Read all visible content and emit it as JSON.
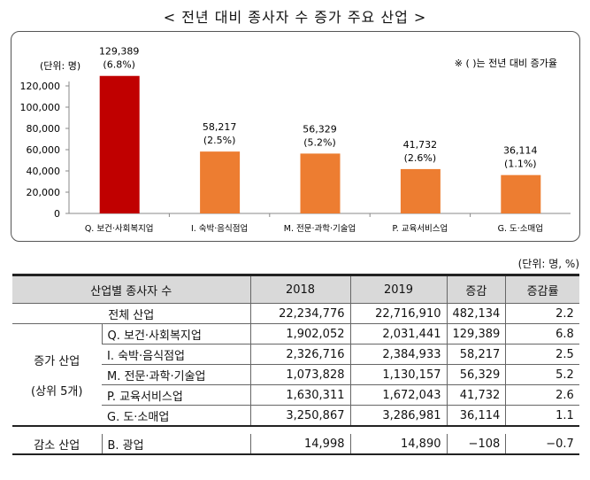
{
  "title": "< 전년 대비 종사자 수 증가 주요 산업 >",
  "chart_data": {
    "type": "bar",
    "unit_label": "(단위: 명)",
    "note": "※ (  )는 전년 대비 증가율",
    "categories": [
      "Q. 보건·사회복지업",
      "I. 숙박·음식점업",
      "M. 전문·과학·기술업",
      "P. 교육서비스업",
      "G. 도·소매업"
    ],
    "values": [
      129389,
      58217,
      56329,
      41732,
      36114
    ],
    "value_labels": [
      "129,389",
      "58,217",
      "56,329",
      "41,732",
      "36,114"
    ],
    "rate_labels": [
      "(6.8%)",
      "(2.5%)",
      "(5.2%)",
      "(2.6%)",
      "(1.1%)"
    ],
    "colors": [
      "#c00000",
      "#ed7d31",
      "#ed7d31",
      "#ed7d31",
      "#ed7d31"
    ],
    "ylim": [
      0,
      120000
    ],
    "yticks": [
      "0",
      "20,000",
      "40,000",
      "60,000",
      "80,000",
      "100,000",
      "120,000"
    ],
    "grid": false
  },
  "table": {
    "unit": "(단위: 명, %)",
    "headers": [
      "산업별 종사자 수",
      "2018",
      "2019",
      "증감",
      "증감률"
    ],
    "total": {
      "label": "전체 산업",
      "y2018": "22,234,776",
      "y2019": "22,716,910",
      "diff": "482,134",
      "rate": "2.2"
    },
    "increase_group": "증가 산업",
    "increase_sub": "(상위 5개)",
    "rows": [
      {
        "label": "Q. 보건·사회복지업",
        "y2018": "1,902,052",
        "y2019": "2,031,441",
        "diff": "129,389",
        "rate": "6.8"
      },
      {
        "label": "I. 숙박·음식점업",
        "y2018": "2,326,716",
        "y2019": "2,384,933",
        "diff": "58,217",
        "rate": "2.5"
      },
      {
        "label": "M. 전문·과학·기술업",
        "y2018": "1,073,828",
        "y2019": "1,130,157",
        "diff": "56,329",
        "rate": "5.2"
      },
      {
        "label": "P. 교육서비스업",
        "y2018": "1,630,311",
        "y2019": "1,672,043",
        "diff": "41,732",
        "rate": "2.6"
      },
      {
        "label": "G. 도·소매업",
        "y2018": "3,250,867",
        "y2019": "3,286,981",
        "diff": "36,114",
        "rate": "1.1"
      }
    ],
    "decrease_group": "감소 산업",
    "decrease": {
      "label": "B. 광업",
      "y2018": "14,998",
      "y2019": "14,890",
      "diff": "−108",
      "rate": "−0.7"
    }
  }
}
